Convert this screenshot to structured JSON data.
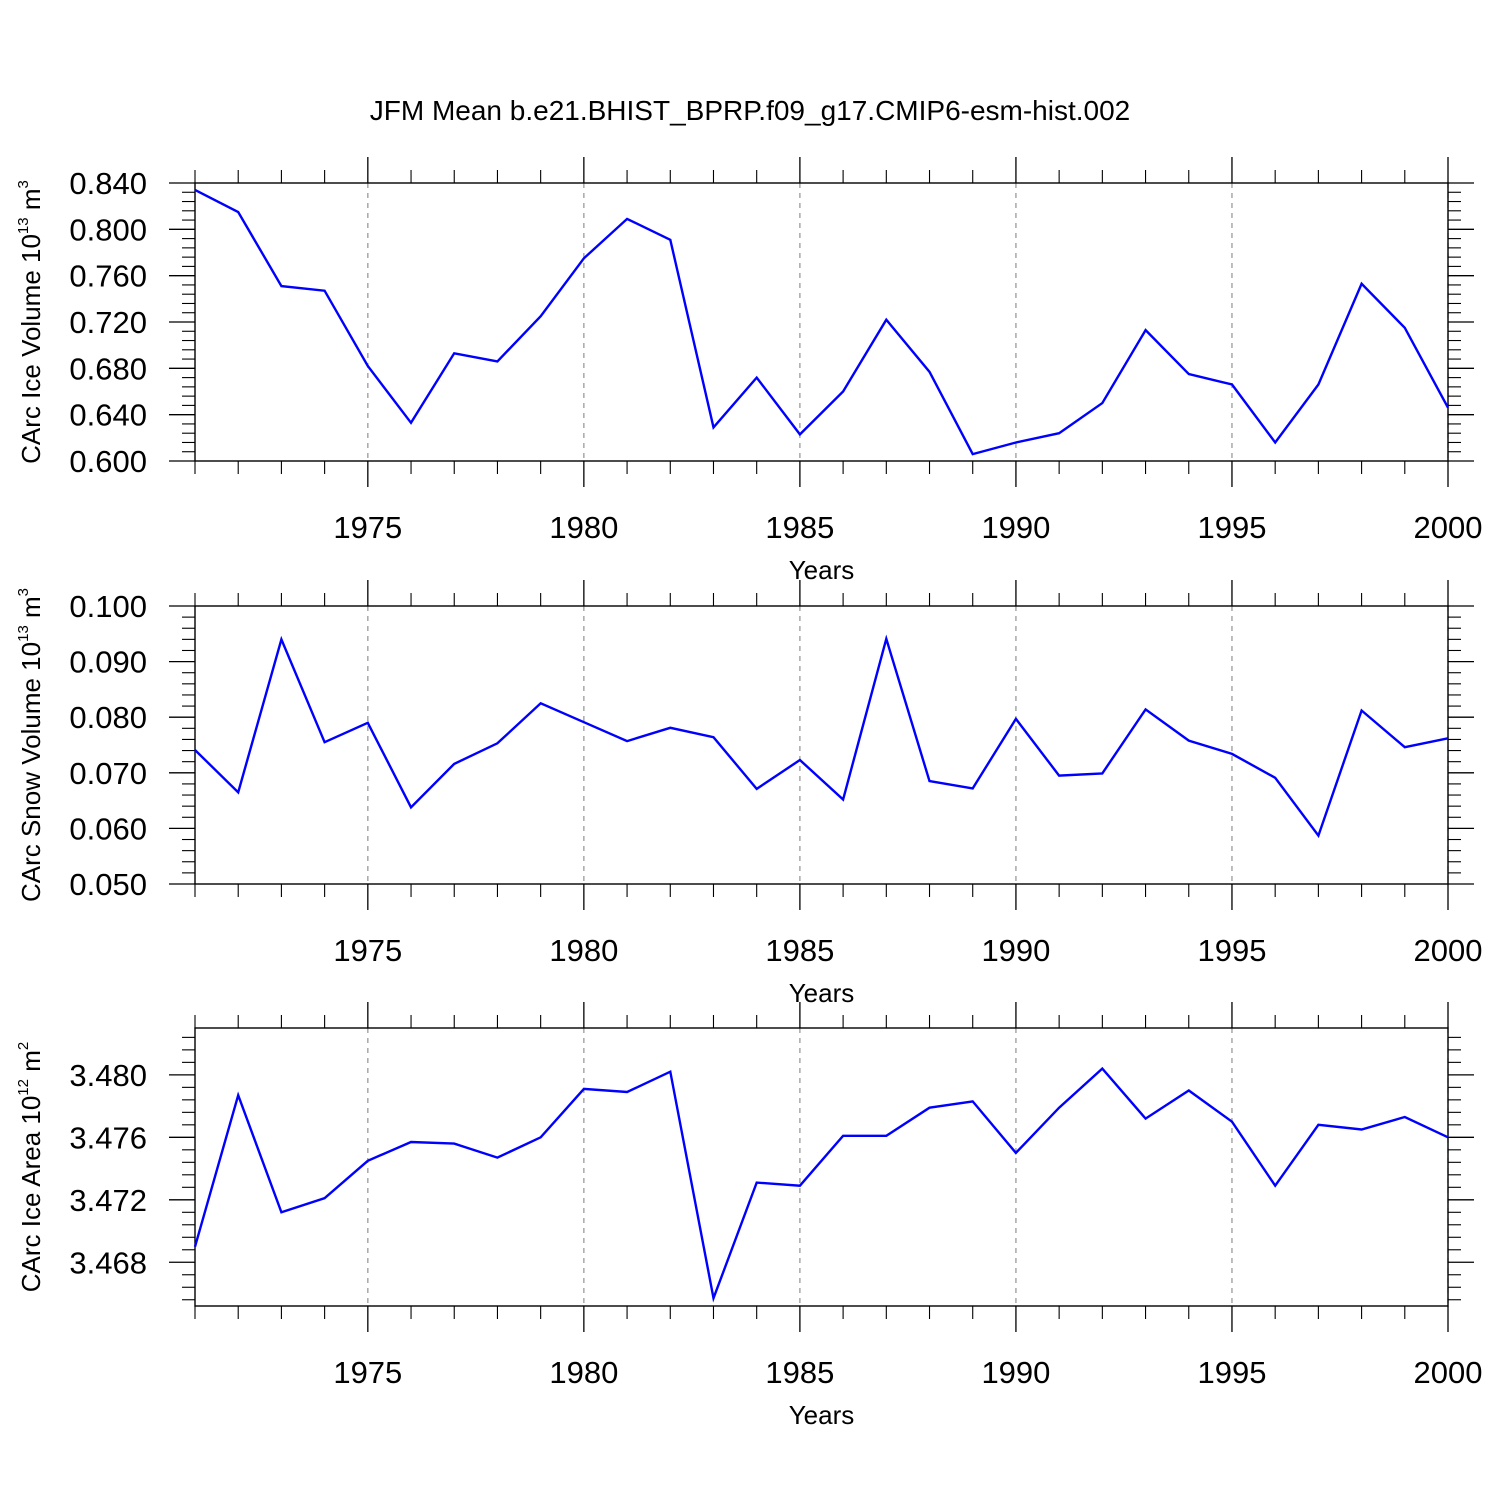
{
  "title": "JFM Mean b.e21.BHIST_BPRP.f09_g17.CMIP6-esm-hist.002",
  "colors": {
    "line": "#0000ff",
    "axis": "#000000",
    "grid": "#9a9a9a"
  },
  "chart_data": [
    {
      "type": "line",
      "xlabel": "Years",
      "ylabel": {
        "text": "CArc Ice Volume 10",
        "exponent": "13",
        "unit": " m",
        "unit_exponent": "3"
      },
      "xlim": [
        1971,
        2000
      ],
      "ylim": [
        0.6,
        0.84
      ],
      "xticks": [
        "1975",
        "1980",
        "1985",
        "1990",
        "1995",
        "2000"
      ],
      "yticks": [
        "0.600",
        "0.640",
        "0.680",
        "0.720",
        "0.760",
        "0.800",
        "0.840"
      ],
      "x": [
        1971,
        1972,
        1973,
        1974,
        1975,
        1976,
        1977,
        1978,
        1979,
        1980,
        1981,
        1982,
        1983,
        1984,
        1985,
        1986,
        1987,
        1988,
        1989,
        1990,
        1991,
        1992,
        1993,
        1994,
        1995,
        1996,
        1997,
        1998,
        1999,
        2000
      ],
      "values": [
        0.834,
        0.815,
        0.751,
        0.747,
        0.682,
        0.633,
        0.693,
        0.686,
        0.725,
        0.775,
        0.809,
        0.791,
        0.629,
        0.672,
        0.623,
        0.66,
        0.722,
        0.677,
        0.606,
        0.616,
        0.624,
        0.65,
        0.713,
        0.675,
        0.666,
        0.616,
        0.666,
        0.753,
        0.715,
        0.646
      ]
    },
    {
      "type": "line",
      "xlabel": "Years",
      "ylabel": {
        "text": "CArc Snow Volume 10",
        "exponent": "13",
        "unit": " m",
        "unit_exponent": "3"
      },
      "xlim": [
        1971,
        2000
      ],
      "ylim": [
        0.05,
        0.1
      ],
      "xticks": [
        "1975",
        "1980",
        "1985",
        "1990",
        "1995",
        "2000"
      ],
      "yticks": [
        "0.050",
        "0.060",
        "0.070",
        "0.080",
        "0.090",
        "0.100"
      ],
      "x": [
        1971,
        1972,
        1973,
        1974,
        1975,
        1976,
        1977,
        1978,
        1979,
        1980,
        1981,
        1982,
        1983,
        1984,
        1985,
        1986,
        1987,
        1988,
        1989,
        1990,
        1991,
        1992,
        1993,
        1994,
        1995,
        1996,
        1997,
        1998,
        1999,
        2000
      ],
      "values": [
        0.0741,
        0.0665,
        0.094,
        0.0755,
        0.079,
        0.0638,
        0.0716,
        0.0753,
        0.0825,
        0.0791,
        0.0757,
        0.0781,
        0.0764,
        0.0671,
        0.0723,
        0.0652,
        0.0941,
        0.0685,
        0.0672,
        0.0797,
        0.0695,
        0.0699,
        0.0814,
        0.0758,
        0.0734,
        0.0691,
        0.0587,
        0.0812,
        0.0746,
        0.0762
      ]
    },
    {
      "type": "line",
      "xlabel": "Years",
      "ylabel": {
        "text": "CArc Ice Area 10",
        "exponent": "12",
        "unit": " m",
        "unit_exponent": "2"
      },
      "xlim": [
        1971,
        2000
      ],
      "ylim": [
        3.4652,
        3.483
      ],
      "xticks": [
        "1975",
        "1980",
        "1985",
        "1990",
        "1995",
        "2000"
      ],
      "yticks": [
        "3.468",
        "3.472",
        "3.476",
        "3.480"
      ],
      "x": [
        1971,
        1972,
        1973,
        1974,
        1975,
        1976,
        1977,
        1978,
        1979,
        1980,
        1981,
        1982,
        1983,
        1984,
        1985,
        1986,
        1987,
        1988,
        1989,
        1990,
        1991,
        1992,
        1993,
        1994,
        1995,
        1996,
        1997,
        1998,
        1999,
        2000
      ],
      "values": [
        3.469,
        3.4787,
        3.4712,
        3.4721,
        3.4745,
        3.4757,
        3.4756,
        3.4747,
        3.476,
        3.4791,
        3.4789,
        3.4802,
        3.4657,
        3.4731,
        3.4729,
        3.4761,
        3.4761,
        3.4779,
        3.4783,
        3.475,
        3.4779,
        3.4804,
        3.4772,
        3.479,
        3.477,
        3.4729,
        3.4768,
        3.4765,
        3.4773,
        3.476
      ]
    }
  ]
}
